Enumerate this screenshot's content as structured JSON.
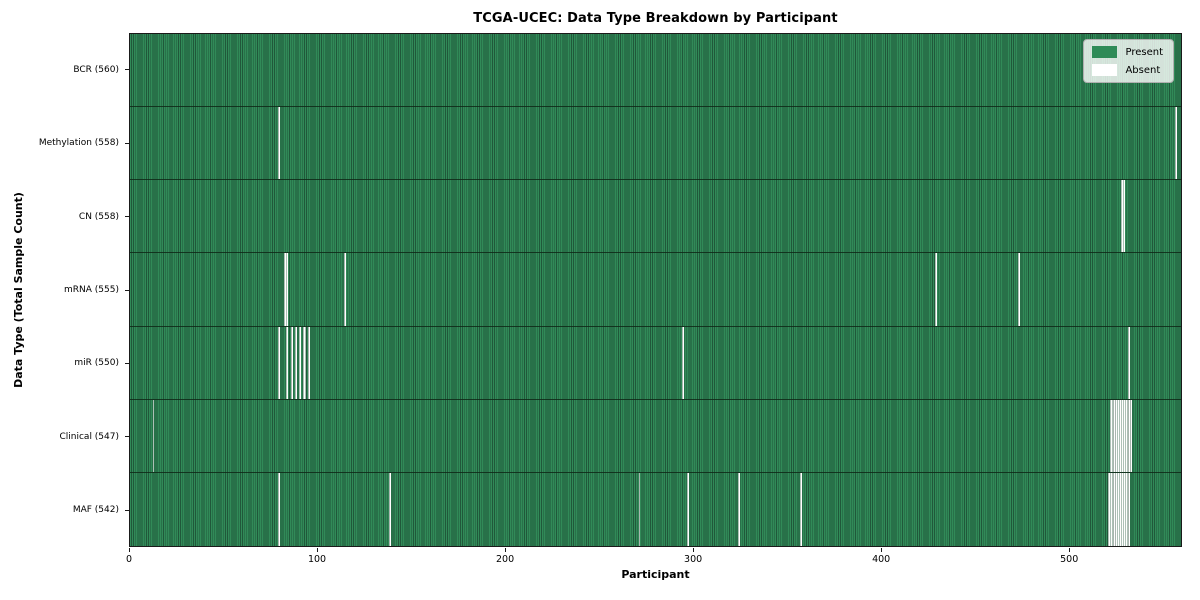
{
  "chart_data": {
    "type": "heatmap",
    "title": "TCGA-UCEC: Data Type Breakdown by Participant",
    "xlabel": "Participant",
    "ylabel": "Data Type (Total Sample Count)",
    "x_range": [
      0,
      560
    ],
    "x_ticks": [
      0,
      100,
      200,
      300,
      400,
      500
    ],
    "grid": false,
    "legend_position": "upper right",
    "legend": [
      {
        "label": "Present",
        "color": "#2e8b57"
      },
      {
        "label": "Absent",
        "color": "#ffffff"
      }
    ],
    "colors": {
      "present_fill": "#2e8b57",
      "present_edge": "#20583a",
      "absent_fill": "#ffffff",
      "row_divider": "#16381f",
      "spine": "#1a1a1a"
    },
    "rows": [
      {
        "label": "BCR",
        "total": 560,
        "tick_label": "BCR (560)",
        "absent_participants": []
      },
      {
        "label": "Methylation",
        "total": 558,
        "tick_label": "Methylation (558)",
        "absent_participants": [
          79,
          557
        ]
      },
      {
        "label": "CN",
        "total": 558,
        "tick_label": "CN (558)",
        "absent_participants": [
          528,
          529
        ]
      },
      {
        "label": "mRNA",
        "total": 555,
        "tick_label": "mRNA (555)",
        "absent_participants": [
          82,
          83,
          114,
          429,
          473
        ]
      },
      {
        "label": "miR",
        "total": 550,
        "tick_label": "miR (550)",
        "absent_participants": [
          79,
          83,
          86,
          88,
          90,
          92,
          93,
          95,
          294,
          532
        ]
      },
      {
        "label": "Clinical",
        "total": 547,
        "tick_label": "Clinical (547)",
        "absent_participants": [
          12,
          522,
          523,
          524,
          525,
          526,
          527,
          528,
          529,
          530,
          531,
          532,
          533
        ]
      },
      {
        "label": "MAF",
        "total": 542,
        "tick_label": "MAF (542)",
        "absent_participants": [
          79,
          138,
          271,
          297,
          324,
          357,
          521,
          522,
          523,
          524,
          525,
          526,
          527,
          528,
          529,
          530,
          531,
          532
        ]
      }
    ]
  }
}
